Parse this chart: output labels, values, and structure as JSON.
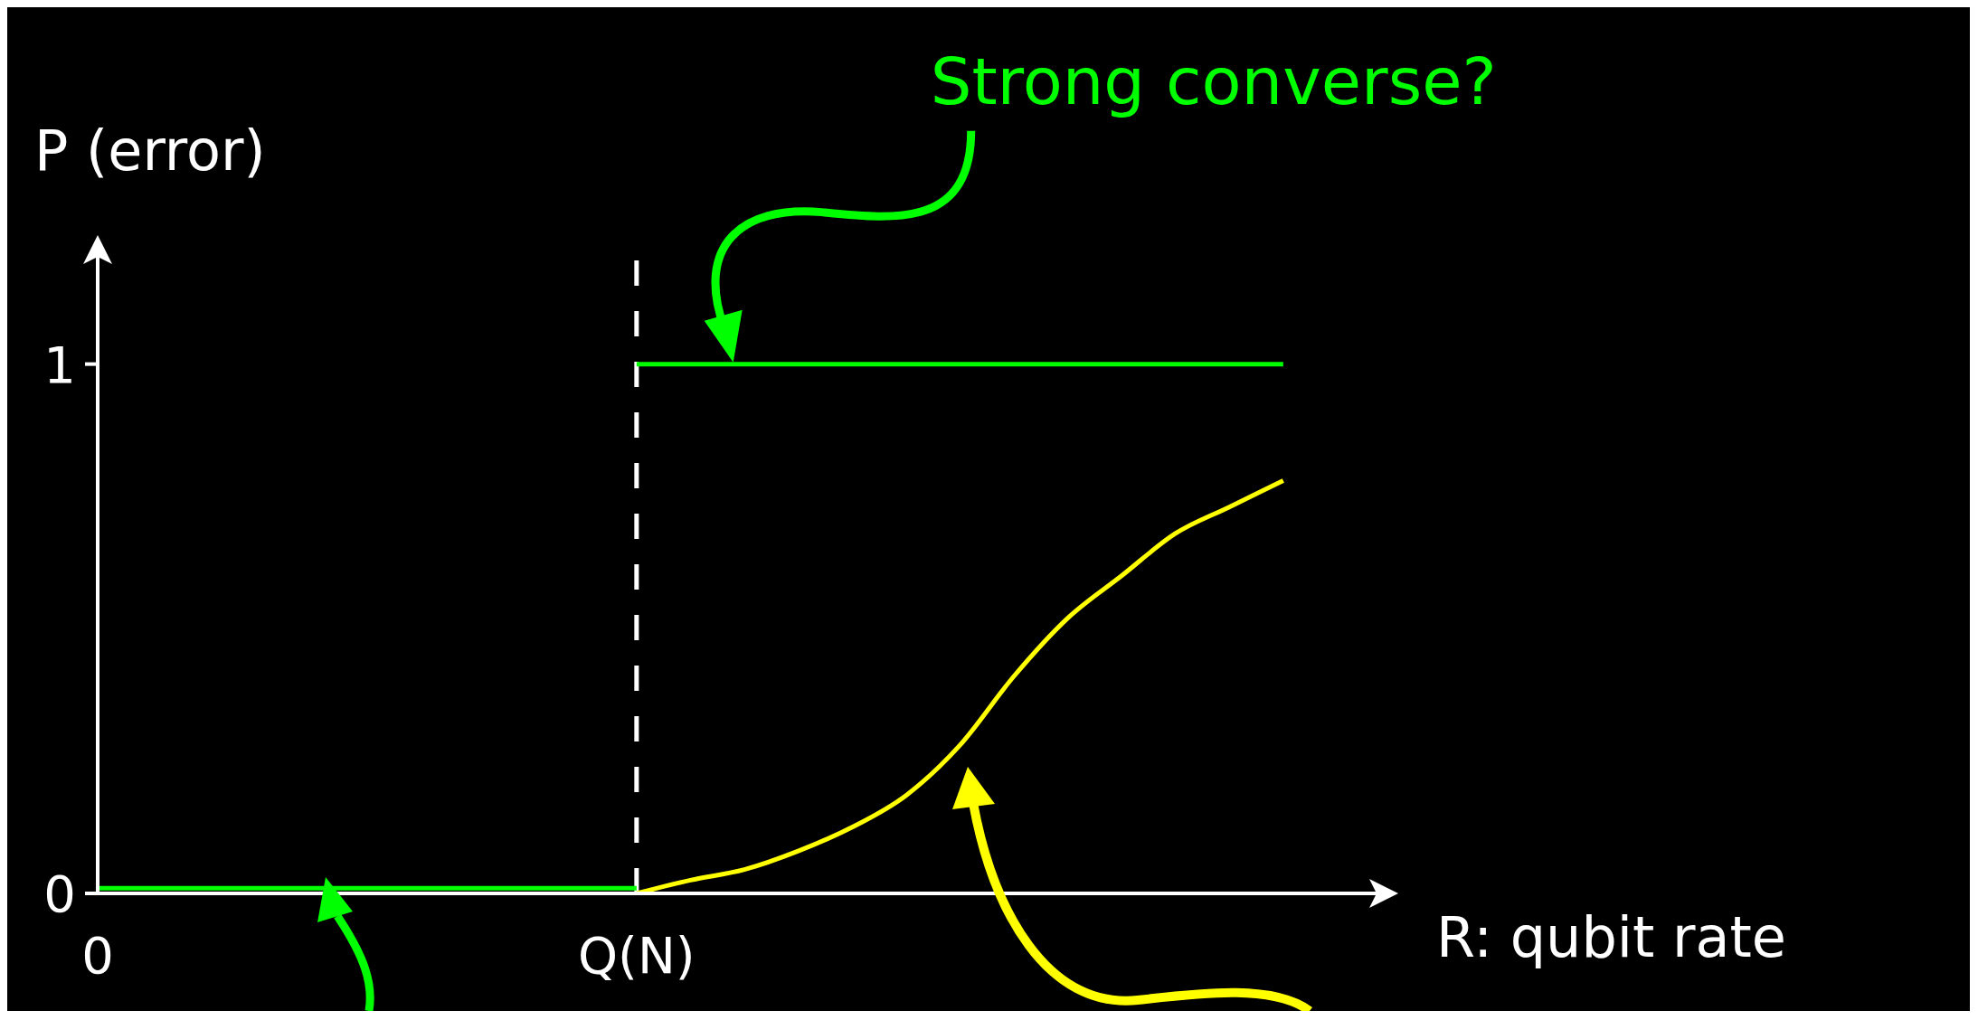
{
  "chart_data": {
    "type": "line",
    "xlabel": "R: qubit rate",
    "ylabel": "P (error)",
    "categories": [
      "0",
      null,
      null,
      null,
      null,
      null,
      null,
      null,
      null,
      null,
      "Q(N)",
      null,
      null,
      null,
      null,
      null,
      null,
      null,
      null,
      null,
      null,
      null,
      null,
      null,
      null
    ],
    "ylim": [
      0,
      1.23
    ],
    "yticks": [
      0,
      1
    ],
    "series": [
      {
        "color": "#00ff00",
        "values": [
          0.01,
          0.01,
          0.01,
          0.01,
          0.01,
          0.01,
          0.01,
          0.01,
          0.01,
          0.01,
          0.01,
          null,
          null,
          null,
          null,
          null,
          null,
          null,
          null,
          null,
          null,
          null,
          null,
          null,
          null
        ]
      },
      {
        "color": "#00ff00",
        "values": [
          null,
          null,
          null,
          null,
          null,
          null,
          null,
          null,
          null,
          null,
          1,
          1,
          1,
          1,
          1,
          1,
          1,
          1,
          1,
          1,
          1,
          1,
          1,
          null,
          null
        ]
      },
      {
        "color": "#ffff00",
        "values": [
          null,
          null,
          null,
          null,
          null,
          null,
          null,
          null,
          null,
          null,
          0,
          0.025,
          0.045,
          0.08,
          0.125,
          0.185,
          0.28,
          0.41,
          0.52,
          0.6,
          0.68,
          0.73,
          0.78,
          null,
          null
        ]
      }
    ],
    "ref_lines": [
      {
        "axis": "x",
        "value": "Q(N)",
        "color": "#ffffff",
        "line_style": "dashed"
      }
    ],
    "annotations": [
      "Strong converse?"
    ],
    "marker": "none",
    "line_style": "solid"
  }
}
